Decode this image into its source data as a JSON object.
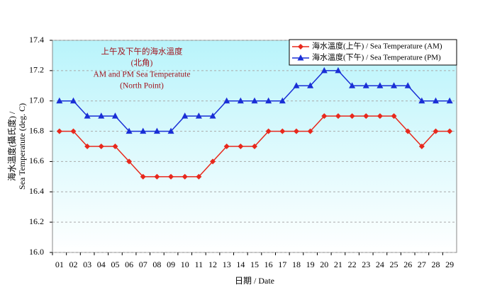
{
  "chart_data": {
    "type": "line",
    "annotation": [
      "上午及下午的海水溫度",
      "(北角)",
      "AM and PM Sea Temperatute",
      "(North Point)"
    ],
    "y_label": [
      "海水溫度(攝氏度) /",
      "Sea Temperatute (deg. C)"
    ],
    "x_label": "日期 / Date",
    "categories": [
      "01",
      "02",
      "03",
      "04",
      "05",
      "06",
      "07",
      "08",
      "09",
      "10",
      "11",
      "12",
      "13",
      "14",
      "15",
      "16",
      "17",
      "18",
      "19",
      "20",
      "21",
      "22",
      "23",
      "24",
      "25",
      "26",
      "27",
      "28",
      "29"
    ],
    "series": [
      {
        "name": "海水溫度(上午) / Sea Temperature (AM)",
        "color": "#e8281c",
        "marker": "diamond",
        "values": [
          16.8,
          16.8,
          16.7,
          16.7,
          16.7,
          16.6,
          16.5,
          16.5,
          16.5,
          16.5,
          16.5,
          16.6,
          16.7,
          16.7,
          16.7,
          16.8,
          16.8,
          16.8,
          16.8,
          16.9,
          16.9,
          16.9,
          16.9,
          16.9,
          16.9,
          16.8,
          16.7,
          16.8,
          16.8
        ]
      },
      {
        "name": "海水溫度(下午) / Sea Temperature (PM)",
        "color": "#1a2fd6",
        "marker": "triangle",
        "values": [
          17.0,
          17.0,
          16.9,
          16.9,
          16.9,
          16.8,
          16.8,
          16.8,
          16.8,
          16.9,
          16.9,
          16.9,
          17.0,
          17.0,
          17.0,
          17.0,
          17.0,
          17.1,
          17.1,
          17.2,
          17.2,
          17.1,
          17.1,
          17.1,
          17.1,
          17.1,
          17.0,
          17.0,
          17.0
        ]
      }
    ],
    "ylim": [
      16.0,
      17.4
    ],
    "yticks": [
      {
        "value": 16.0,
        "label": "16.0"
      },
      {
        "value": 16.2,
        "label": "16.2"
      },
      {
        "value": 16.4,
        "label": "16.4"
      },
      {
        "value": 16.6,
        "label": "16.6"
      },
      {
        "value": 16.8,
        "label": "16.8"
      },
      {
        "value": 17.0,
        "label": "17.0"
      },
      {
        "value": 17.2,
        "label": "17.2"
      },
      {
        "value": 17.4,
        "label": "17.4"
      }
    ],
    "grid": true
  }
}
